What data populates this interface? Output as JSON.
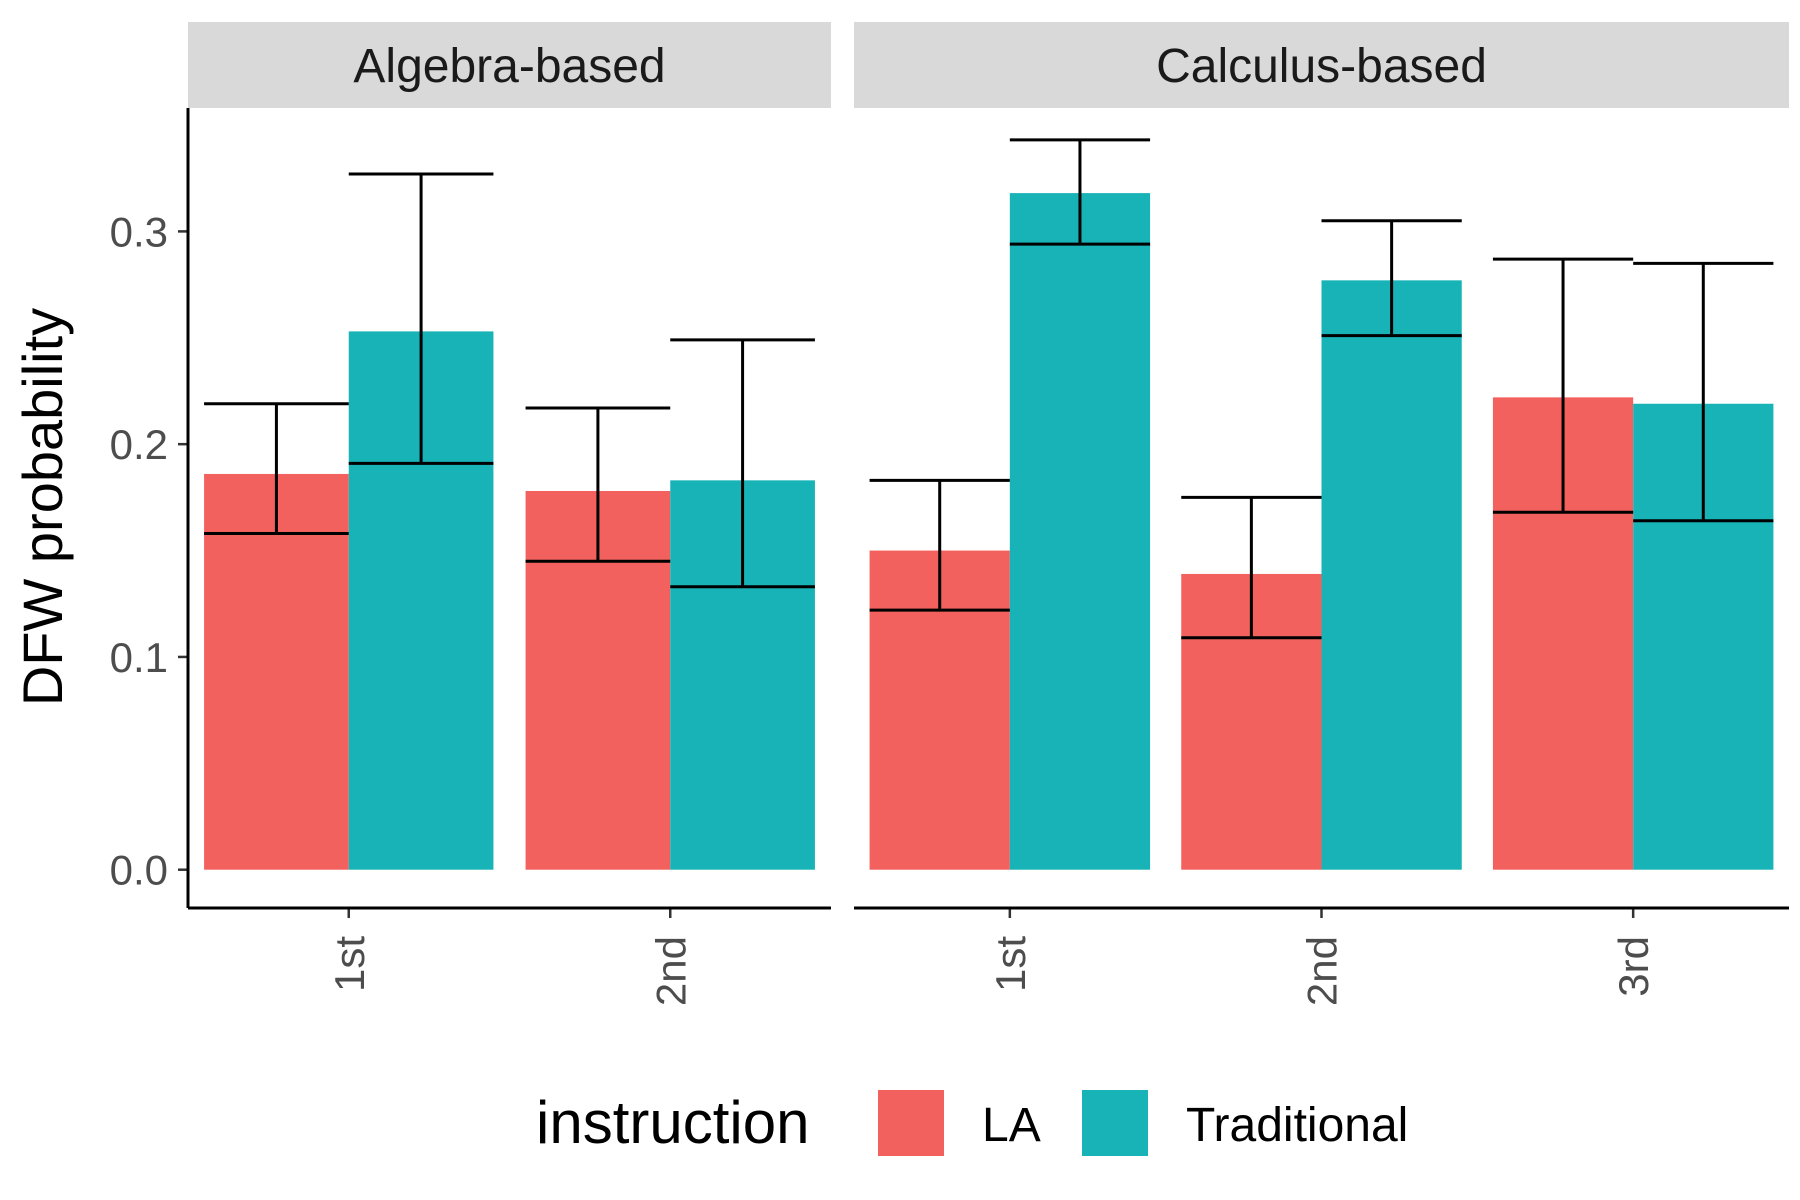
{
  "chart_data": {
    "type": "bar",
    "ylabel": "DFW probability",
    "ylim": [
      -0.018,
      0.358
    ],
    "yticks": [
      0.0,
      0.1,
      0.2,
      0.3
    ],
    "ytick_labels": [
      "0.0",
      "0.1",
      "0.2",
      "0.3"
    ],
    "legend": {
      "title": "instruction",
      "position": "bottom",
      "entries": [
        {
          "name": "LA",
          "color": "#F2615E"
        },
        {
          "name": "Traditional",
          "color": "#18B3B7"
        }
      ]
    },
    "panels": [
      {
        "title": "Algebra-based",
        "categories": [
          "1st",
          "2nd"
        ],
        "series": [
          {
            "name": "LA",
            "values": [
              0.186,
              0.178
            ],
            "lower": [
              0.158,
              0.145
            ],
            "upper": [
              0.219,
              0.217
            ]
          },
          {
            "name": "Traditional",
            "values": [
              0.253,
              0.183
            ],
            "lower": [
              0.191,
              0.133
            ],
            "upper": [
              0.327,
              0.249
            ]
          }
        ]
      },
      {
        "title": "Calculus-based",
        "categories": [
          "1st",
          "2nd",
          "3rd"
        ],
        "series": [
          {
            "name": "LA",
            "values": [
              0.15,
              0.139,
              0.222
            ],
            "lower": [
              0.122,
              0.109,
              0.168
            ],
            "upper": [
              0.183,
              0.175,
              0.287
            ]
          },
          {
            "name": "Traditional",
            "values": [
              0.318,
              0.277,
              0.219
            ],
            "lower": [
              0.294,
              0.251,
              0.164
            ],
            "upper": [
              0.343,
              0.305,
              0.285
            ]
          }
        ]
      }
    ]
  }
}
